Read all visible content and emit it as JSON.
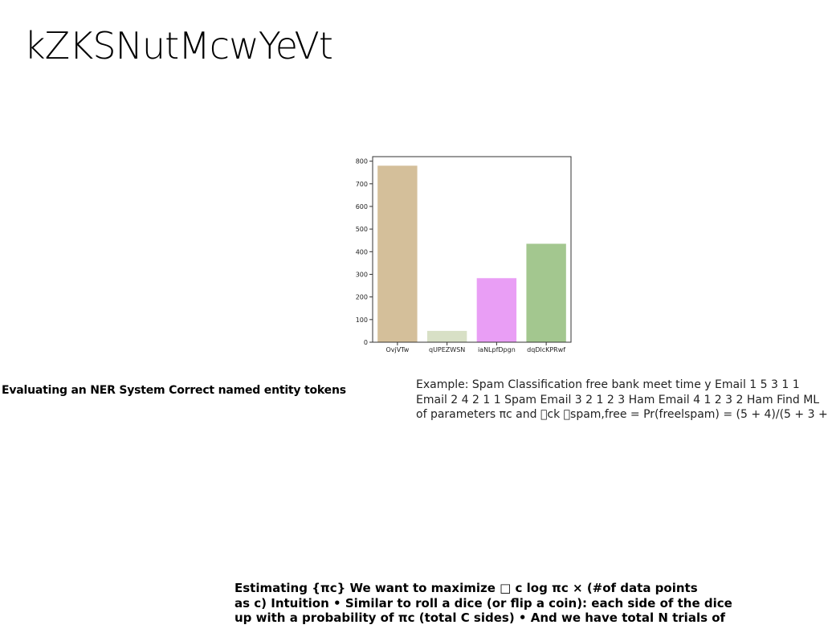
{
  "slide": {
    "title": "kZKSNutMcwYeVt"
  },
  "left_heading": "Evaluating an NER System Correct named entity tokens",
  "right_text": {
    "lines": [
      "Example: Spam Classification free bank meet time y Email 1 5 3 1 1",
      "Email 2 4 2 1 1 Spam Email 3 2 1 2 3 Ham Email 4 1 2 3 2 Ham Find ML",
      "of parameters πc and \u0000ck \u0000spam,free = Pr(freelspam) = (5 + 4)/(5 + 3 +"
    ]
  },
  "bottom_text": {
    "lines": [
      "Estimating {πc} We want to maximize □ c log πc × (#of data points",
      "as c) Intuition • Similar to roll a dice (or flip a coin): each side of the dice",
      "up with a probability of πc (total C sides) • And we have total N trials of"
    ]
  },
  "chart_data": {
    "type": "bar",
    "categories": [
      "OvjVTw",
      "qUPEZWSN",
      "iaNLpfDpgn",
      "dqDlcKPRwf"
    ],
    "values": [
      780,
      50,
      283,
      435
    ],
    "colors": [
      "#d4bf9a",
      "#d8e0c6",
      "#e99ef5",
      "#a3c78f"
    ],
    "ylim": [
      0,
      820
    ],
    "yticks": [
      0,
      100,
      200,
      300,
      400,
      500,
      600,
      700,
      800
    ],
    "title": "",
    "xlabel": "",
    "ylabel": "",
    "grid": false
  }
}
